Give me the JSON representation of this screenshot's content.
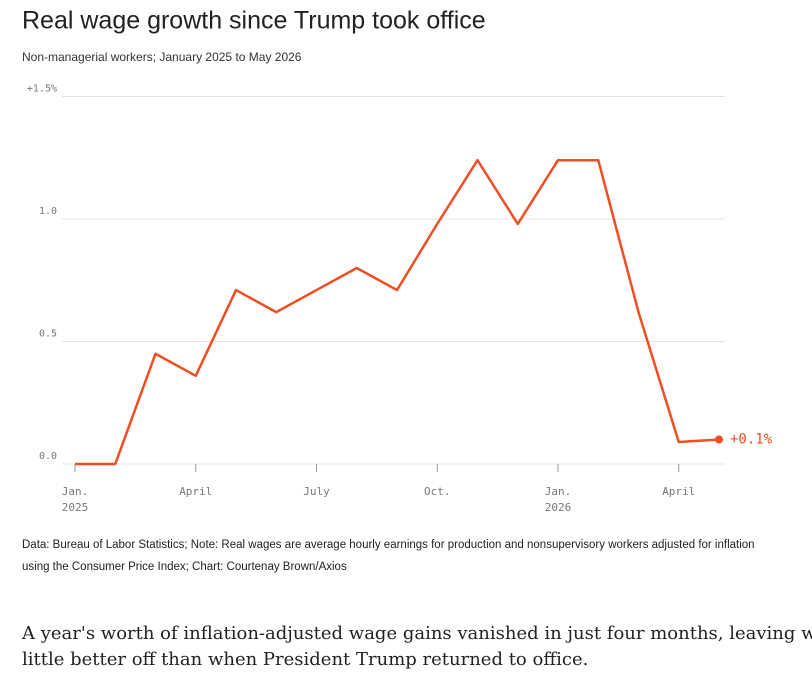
{
  "chart_data": {
    "type": "line",
    "title": "Real wage growth since Trump took office",
    "subtitle": "Non-managerial workers; January 2025 to May 2026",
    "categories": [
      "Jan. 2025",
      null,
      null,
      "April",
      null,
      null,
      "July",
      null,
      null,
      "Oct.",
      null,
      null,
      "Jan. 2026",
      null,
      null,
      "April",
      null
    ],
    "series": [
      {
        "color": "#f04e23",
        "values": [
          0,
          0,
          0.45,
          0.36,
          0.71,
          0.62,
          0.71,
          0.8,
          0.71,
          0.98,
          1.24,
          0.98,
          1.24,
          1.24,
          0.62,
          0.09,
          0.1
        ],
        "value_labels": [
          null,
          null,
          null,
          null,
          null,
          null,
          null,
          null,
          null,
          null,
          null,
          null,
          null,
          null,
          null,
          null,
          "+0.1%"
        ]
      }
    ],
    "ylim": [
      0,
      1.5
    ],
    "yticks": [
      {
        "value": 0,
        "label": "0.0"
      },
      {
        "value": 0.5,
        "label": "0.5"
      },
      {
        "value": 1,
        "label": "1.0"
      },
      {
        "value": 1.5,
        "label": "+1.5%"
      }
    ],
    "grid": true
  },
  "note": {
    "line1": "Data: Bureau of Labor Statistics; Note: Real wages are average hourly earnings for production and nonsupervisory workers adjusted for inflation",
    "line2": "using the Consumer Price Index; Chart: Courtenay Brown/Axios"
  },
  "body": {
    "line1": "A year's worth of inflation-adjusted wage gains vanished in just four months, leaving workers",
    "line2": "little better off than when President Trump returned to office."
  }
}
